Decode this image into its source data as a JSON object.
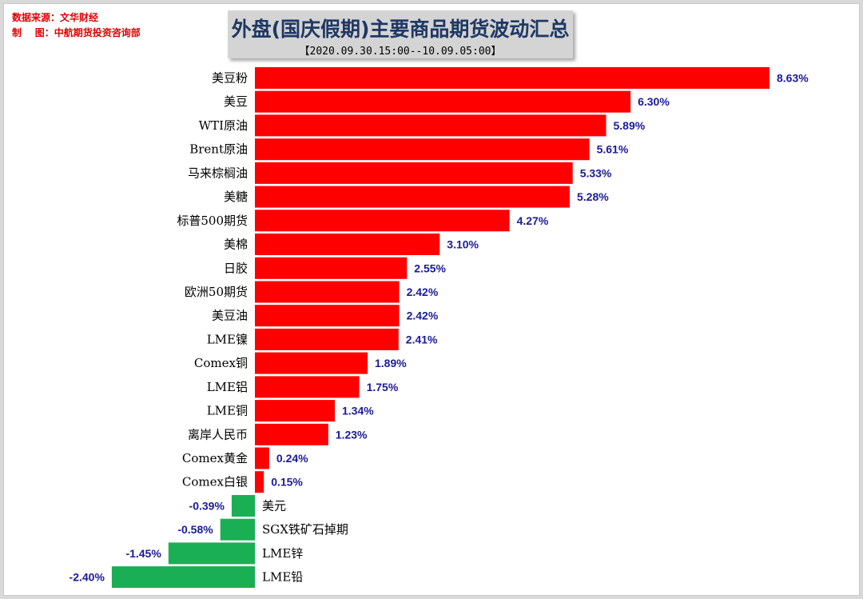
{
  "source_line": "数据来源：文华财经",
  "maker_line": "制    图：中航期货投资咨询部",
  "colors": {
    "positive": "#ff0000",
    "negative": "#1aaf54",
    "label": "#1a1a9a"
  },
  "chart_data": {
    "type": "bar",
    "orientation": "horizontal",
    "title": "外盘(国庆假期)主要商品期货波动汇总",
    "subtitle": "【2020.09.30.15:00--10.09.05:00】",
    "categories": [
      "美豆粉",
      "美豆",
      "WTI原油",
      "Brent原油",
      "马来棕榈油",
      "美糖",
      "标普500期货",
      "美棉",
      "日胶",
      "欧洲50期货",
      "美豆油",
      "LME镍",
      "Comex铜",
      "LME铝",
      "LME铜",
      "离岸人民币",
      "Comex黄金",
      "Comex白银",
      "美元",
      "SGX铁矿石掉期",
      "LME锌",
      "LME铅"
    ],
    "values": [
      8.63,
      6.3,
      5.89,
      5.61,
      5.33,
      5.28,
      4.27,
      3.1,
      2.55,
      2.42,
      2.42,
      2.41,
      1.89,
      1.75,
      1.34,
      1.23,
      0.24,
      0.15,
      -0.39,
      -0.58,
      -1.45,
      -2.4
    ],
    "value_labels": [
      "8.63%",
      "6.30%",
      "5.89%",
      "5.61%",
      "5.33%",
      "5.28%",
      "4.27%",
      "3.10%",
      "2.55%",
      "2.42%",
      "2.42%",
      "2.41%",
      "1.89%",
      "1.75%",
      "1.34%",
      "1.23%",
      "0.24%",
      "0.15%",
      "-0.39%",
      "-0.58%",
      "-1.45%",
      "-2.40%"
    ],
    "unit": "%",
    "grid": false,
    "legend": "none"
  }
}
